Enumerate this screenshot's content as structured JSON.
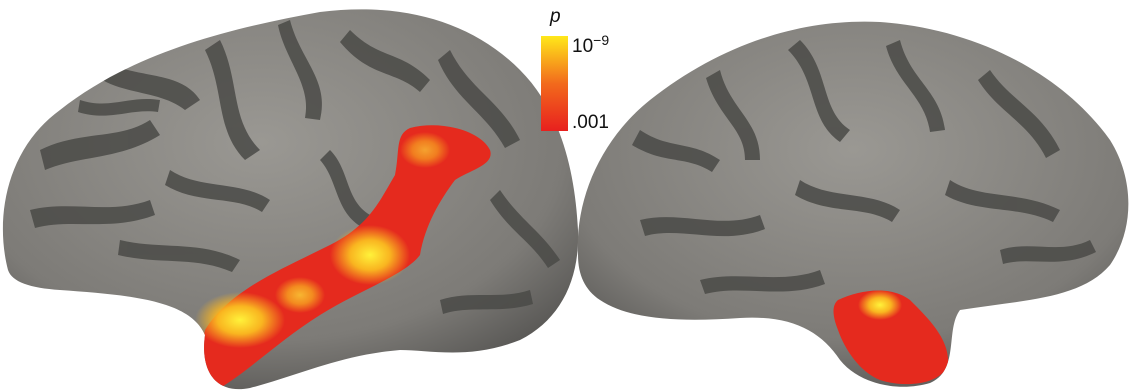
{
  "colorbar": {
    "label": "p",
    "top_label_base": "10",
    "top_label_exponent": "−9",
    "bottom_label": ".001"
  }
}
